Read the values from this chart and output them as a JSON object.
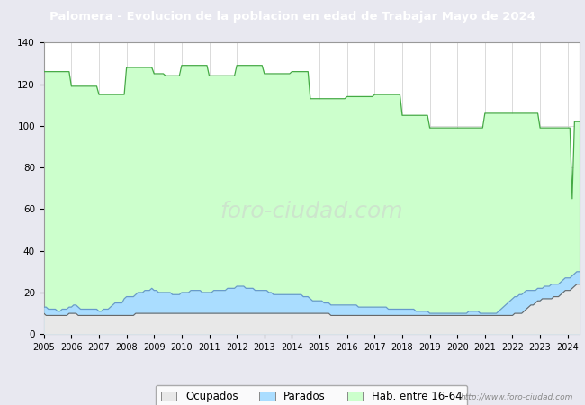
{
  "title": "Palomera - Evolucion de la poblacion en edad de Trabajar Mayo de 2024",
  "title_bg_color": "#4472c4",
  "title_text_color": "#ffffff",
  "ylim": [
    0,
    140
  ],
  "yticks": [
    0,
    20,
    40,
    60,
    80,
    100,
    120,
    140
  ],
  "url_text": "http://www.foro-ciudad.com",
  "legend_labels": [
    "Ocupados",
    "Parados",
    "Hab. entre 16-64"
  ],
  "background_color": "#e8e8f0",
  "plot_bg_color": "#ffffff",
  "grid_color": "#cccccc",
  "hab_color": "#ccffcc",
  "hab_line_color": "#44aa44",
  "parados_color": "#aaddff",
  "parados_line_color": "#6699cc",
  "ocupados_color": "#e8e8e8",
  "ocupados_line_color": "#666666",
  "years": [
    2005,
    2006,
    2007,
    2008,
    2009,
    2010,
    2011,
    2012,
    2013,
    2014,
    2015,
    2016,
    2017,
    2018,
    2019,
    2020,
    2021,
    2022,
    2023,
    2024
  ],
  "hab_data": {
    "2005": [
      126,
      126,
      126,
      126,
      126,
      126,
      126,
      126,
      126,
      126,
      126,
      126
    ],
    "2006": [
      119,
      119,
      119,
      119,
      119,
      119,
      119,
      119,
      119,
      119,
      119,
      119
    ],
    "2007": [
      115,
      115,
      115,
      115,
      115,
      115,
      115,
      115,
      115,
      115,
      115,
      115
    ],
    "2008": [
      128,
      128,
      128,
      128,
      128,
      128,
      128,
      128,
      128,
      128,
      128,
      128
    ],
    "2009": [
      125,
      125,
      125,
      125,
      125,
      124,
      124,
      124,
      124,
      124,
      124,
      124
    ],
    "2010": [
      129,
      129,
      129,
      129,
      129,
      129,
      129,
      129,
      129,
      129,
      129,
      129
    ],
    "2011": [
      124,
      124,
      124,
      124,
      124,
      124,
      124,
      124,
      124,
      124,
      124,
      124
    ],
    "2012": [
      129,
      129,
      129,
      129,
      129,
      129,
      129,
      129,
      129,
      129,
      129,
      129
    ],
    "2013": [
      125,
      125,
      125,
      125,
      125,
      125,
      125,
      125,
      125,
      125,
      125,
      125
    ],
    "2014": [
      126,
      126,
      126,
      126,
      126,
      126,
      126,
      126,
      113,
      113,
      113,
      113
    ],
    "2015": [
      113,
      113,
      113,
      113,
      113,
      113,
      113,
      113,
      113,
      113,
      113,
      113
    ],
    "2016": [
      114,
      114,
      114,
      114,
      114,
      114,
      114,
      114,
      114,
      114,
      114,
      114
    ],
    "2017": [
      115,
      115,
      115,
      115,
      115,
      115,
      115,
      115,
      115,
      115,
      115,
      115
    ],
    "2018": [
      105,
      105,
      105,
      105,
      105,
      105,
      105,
      105,
      105,
      105,
      105,
      105
    ],
    "2019": [
      99,
      99,
      99,
      99,
      99,
      99,
      99,
      99,
      99,
      99,
      99,
      99
    ],
    "2020": [
      99,
      99,
      99,
      99,
      99,
      99,
      99,
      99,
      99,
      99,
      99,
      99
    ],
    "2021": [
      106,
      106,
      106,
      106,
      106,
      106,
      106,
      106,
      106,
      106,
      106,
      106
    ],
    "2022": [
      106,
      106,
      106,
      106,
      106,
      106,
      106,
      106,
      106,
      106,
      106,
      106
    ],
    "2023": [
      99,
      99,
      99,
      99,
      99,
      99,
      99,
      99,
      99,
      99,
      99,
      99
    ],
    "2024": [
      99,
      99,
      65,
      102,
      102,
      102
    ]
  },
  "parados_data": {
    "2005": [
      13,
      13,
      12,
      12,
      12,
      12,
      11,
      11,
      12,
      12,
      12,
      13
    ],
    "2006": [
      13,
      14,
      14,
      13,
      12,
      12,
      12,
      12,
      12,
      12,
      12,
      12
    ],
    "2007": [
      11,
      11,
      12,
      12,
      12,
      13,
      14,
      15,
      15,
      15,
      15,
      17
    ],
    "2008": [
      18,
      18,
      18,
      18,
      19,
      20,
      20,
      20,
      21,
      21,
      21,
      22
    ],
    "2009": [
      21,
      21,
      20,
      20,
      20,
      20,
      20,
      20,
      19,
      19,
      19,
      19
    ],
    "2010": [
      20,
      20,
      20,
      20,
      21,
      21,
      21,
      21,
      21,
      20,
      20,
      20
    ],
    "2011": [
      20,
      20,
      21,
      21,
      21,
      21,
      21,
      21,
      22,
      22,
      22,
      22
    ],
    "2012": [
      23,
      23,
      23,
      23,
      22,
      22,
      22,
      22,
      21,
      21,
      21,
      21
    ],
    "2013": [
      21,
      21,
      20,
      20,
      19,
      19,
      19,
      19,
      19,
      19,
      19,
      19
    ],
    "2014": [
      19,
      19,
      19,
      19,
      19,
      18,
      18,
      18,
      17,
      16,
      16,
      16
    ],
    "2015": [
      16,
      16,
      15,
      15,
      15,
      14,
      14,
      14,
      14,
      14,
      14,
      14
    ],
    "2016": [
      14,
      14,
      14,
      14,
      14,
      13,
      13,
      13,
      13,
      13,
      13,
      13
    ],
    "2017": [
      13,
      13,
      13,
      13,
      13,
      13,
      12,
      12,
      12,
      12,
      12,
      12
    ],
    "2018": [
      12,
      12,
      12,
      12,
      12,
      12,
      11,
      11,
      11,
      11,
      11,
      11
    ],
    "2019": [
      10,
      10,
      10,
      10,
      10,
      10,
      10,
      10,
      10,
      10,
      10,
      10
    ],
    "2020": [
      10,
      10,
      10,
      10,
      10,
      11,
      11,
      11,
      11,
      11,
      10,
      10
    ],
    "2021": [
      10,
      10,
      10,
      10,
      10,
      10,
      11,
      12,
      13,
      14,
      15,
      16
    ],
    "2022": [
      17,
      18,
      18,
      19,
      19,
      20,
      21,
      21,
      21,
      21,
      21,
      22
    ],
    "2023": [
      22,
      22,
      23,
      23,
      23,
      24,
      24,
      24,
      24,
      25,
      26,
      27
    ],
    "2024": [
      27,
      27,
      28,
      29,
      30,
      30
    ]
  },
  "ocupados_data": {
    "2005": [
      10,
      9,
      9,
      9,
      9,
      9,
      9,
      9,
      9,
      9,
      9,
      10
    ],
    "2006": [
      10,
      10,
      10,
      9,
      9,
      9,
      9,
      9,
      9,
      9,
      9,
      9
    ],
    "2007": [
      9,
      9,
      9,
      9,
      9,
      9,
      9,
      9,
      9,
      9,
      9,
      9
    ],
    "2008": [
      9,
      9,
      9,
      9,
      10,
      10,
      10,
      10,
      10,
      10,
      10,
      10
    ],
    "2009": [
      10,
      10,
      10,
      10,
      10,
      10,
      10,
      10,
      10,
      10,
      10,
      10
    ],
    "2010": [
      10,
      10,
      10,
      10,
      10,
      10,
      10,
      10,
      10,
      10,
      10,
      10
    ],
    "2011": [
      10,
      10,
      10,
      10,
      10,
      10,
      10,
      10,
      10,
      10,
      10,
      10
    ],
    "2012": [
      10,
      10,
      10,
      10,
      10,
      10,
      10,
      10,
      10,
      10,
      10,
      10
    ],
    "2013": [
      10,
      10,
      10,
      10,
      10,
      10,
      10,
      10,
      10,
      10,
      10,
      10
    ],
    "2014": [
      10,
      10,
      10,
      10,
      10,
      10,
      10,
      10,
      10,
      10,
      10,
      10
    ],
    "2015": [
      10,
      10,
      10,
      10,
      10,
      9,
      9,
      9,
      9,
      9,
      9,
      9
    ],
    "2016": [
      9,
      9,
      9,
      9,
      9,
      9,
      9,
      9,
      9,
      9,
      9,
      9
    ],
    "2017": [
      9,
      9,
      9,
      9,
      9,
      9,
      9,
      9,
      9,
      9,
      9,
      9
    ],
    "2018": [
      9,
      9,
      9,
      9,
      9,
      9,
      9,
      9,
      9,
      9,
      9,
      9
    ],
    "2019": [
      9,
      9,
      9,
      9,
      9,
      9,
      9,
      9,
      9,
      9,
      9,
      9
    ],
    "2020": [
      9,
      9,
      9,
      9,
      9,
      9,
      9,
      9,
      9,
      9,
      9,
      9
    ],
    "2021": [
      9,
      9,
      9,
      9,
      9,
      9,
      9,
      9,
      9,
      9,
      9,
      9
    ],
    "2022": [
      9,
      10,
      10,
      10,
      10,
      11,
      12,
      13,
      14,
      14,
      15,
      16
    ],
    "2023": [
      16,
      17,
      17,
      17,
      17,
      17,
      18,
      18,
      18,
      19,
      20,
      21
    ],
    "2024": [
      21,
      21,
      22,
      23,
      24,
      24
    ]
  }
}
